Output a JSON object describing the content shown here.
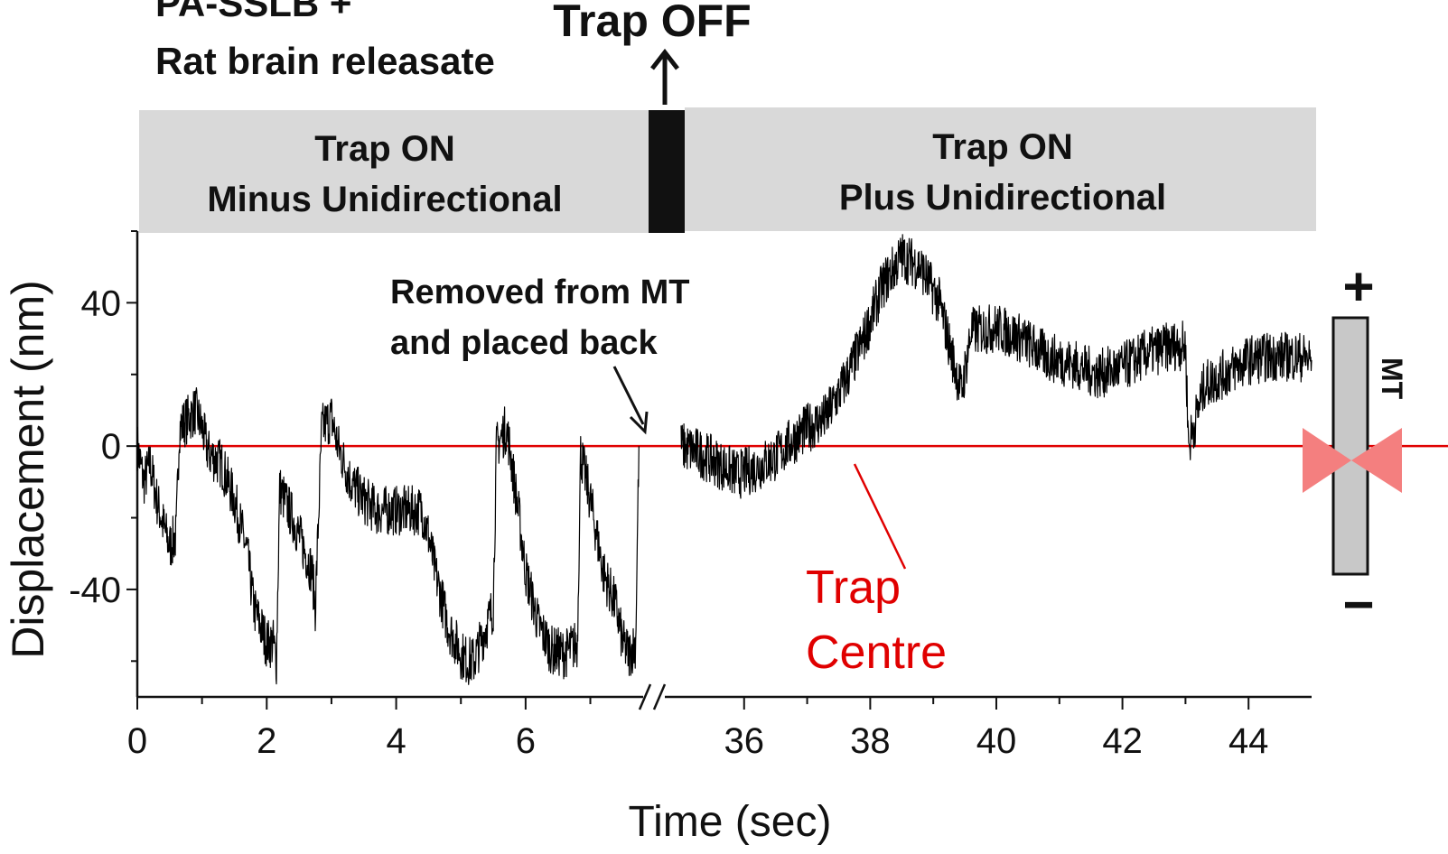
{
  "header": {
    "condition_line1": "PA-SSLB +",
    "condition_line2": "Rat brain releasate",
    "trap_off_label": "Trap OFF"
  },
  "phases": {
    "left_line1": "Trap ON",
    "left_line2": "Minus Unidirectional",
    "right_line1": "Trap ON",
    "right_line2": "Plus Unidirectional"
  },
  "annotations": {
    "removed_line1": "Removed from MT",
    "removed_line2": "and placed back",
    "trap_centre_line1": "Trap",
    "trap_centre_line2": "Centre"
  },
  "mt_schematic": {
    "plus_label": "+",
    "minus_label": "−",
    "mt_label": "MT"
  },
  "colors": {
    "trace": "#000000",
    "trap_centre_line": "#e00000",
    "trap_icon": "#f47f7f",
    "phase_box": "#d9d9d9",
    "trap_off_bar": "#111111",
    "mt_rod": "#c8c8c8"
  },
  "chart_data": {
    "type": "line",
    "xlabel": "Time (sec)",
    "ylabel": "Displacement (nm)",
    "x_segments": [
      {
        "xlim": [
          0,
          7.9
        ],
        "ticks": [
          0,
          2,
          4,
          6
        ],
        "tick_labels": [
          "0",
          "2",
          "4",
          "6"
        ]
      },
      {
        "xlim": [
          34.8,
          45
        ],
        "ticks": [
          36,
          38,
          40,
          42,
          44
        ],
        "tick_labels": [
          "36",
          "38",
          "40",
          "42",
          "44"
        ]
      }
    ],
    "ylim": [
      -70,
      60
    ],
    "yticks": [
      -40,
      0,
      40
    ],
    "ytick_labels": [
      "-40",
      "0",
      "40"
    ],
    "axis_break": "between 7.9 s and 34.8 s",
    "trap_centre_y": 0,
    "grid": false,
    "series": [
      {
        "segment": 0,
        "points": [
          [
            0,
            0
          ],
          [
            0.1,
            -10
          ],
          [
            0.2,
            -5
          ],
          [
            0.3,
            -15
          ],
          [
            0.4,
            -22
          ],
          [
            0.5,
            -28
          ],
          [
            0.6,
            -25
          ],
          [
            0.65,
            5
          ],
          [
            0.8,
            8
          ],
          [
            0.9,
            10
          ],
          [
            1.0,
            5
          ],
          [
            1.1,
            -2
          ],
          [
            1.3,
            -5
          ],
          [
            1.5,
            -15
          ],
          [
            1.7,
            -30
          ],
          [
            1.8,
            -45
          ],
          [
            1.9,
            -50
          ],
          [
            2.0,
            -55
          ],
          [
            2.1,
            -55
          ],
          [
            2.15,
            -60
          ],
          [
            2.2,
            -12
          ],
          [
            2.4,
            -20
          ],
          [
            2.5,
            -25
          ],
          [
            2.7,
            -35
          ],
          [
            2.75,
            -45
          ],
          [
            2.85,
            5
          ],
          [
            3.0,
            8
          ],
          [
            3.1,
            0
          ],
          [
            3.3,
            -10
          ],
          [
            3.5,
            -15
          ],
          [
            3.7,
            -18
          ],
          [
            4.0,
            -18
          ],
          [
            4.4,
            -18
          ],
          [
            4.5,
            -25
          ],
          [
            4.6,
            -35
          ],
          [
            4.8,
            -50
          ],
          [
            5.0,
            -58
          ],
          [
            5.1,
            -60
          ],
          [
            5.2,
            -60
          ],
          [
            5.3,
            -55
          ],
          [
            5.5,
            -45
          ],
          [
            5.55,
            0
          ],
          [
            5.7,
            5
          ],
          [
            5.75,
            0
          ],
          [
            5.9,
            -20
          ],
          [
            6.0,
            -35
          ],
          [
            6.2,
            -50
          ],
          [
            6.4,
            -57
          ],
          [
            6.6,
            -58
          ],
          [
            6.8,
            -55
          ],
          [
            6.85,
            -2
          ],
          [
            7.0,
            -15
          ],
          [
            7.2,
            -35
          ],
          [
            7.4,
            -45
          ],
          [
            7.5,
            -55
          ],
          [
            7.6,
            -58
          ],
          [
            7.7,
            -55
          ],
          [
            7.75,
            0
          ]
        ]
      },
      {
        "segment": 1,
        "points": [
          [
            35.0,
            0
          ],
          [
            35.3,
            -2
          ],
          [
            35.6,
            -5
          ],
          [
            35.9,
            -8
          ],
          [
            36.2,
            -6
          ],
          [
            36.5,
            -3
          ],
          [
            36.8,
            2
          ],
          [
            37.0,
            5
          ],
          [
            37.3,
            8
          ],
          [
            37.6,
            18
          ],
          [
            37.9,
            30
          ],
          [
            38.2,
            45
          ],
          [
            38.5,
            53
          ],
          [
            38.8,
            50
          ],
          [
            39.1,
            40
          ],
          [
            39.3,
            25
          ],
          [
            39.45,
            15
          ],
          [
            39.6,
            32
          ],
          [
            40.0,
            33
          ],
          [
            40.4,
            30
          ],
          [
            40.8,
            25
          ],
          [
            41.2,
            23
          ],
          [
            41.6,
            20
          ],
          [
            42.0,
            22
          ],
          [
            42.4,
            26
          ],
          [
            42.8,
            28
          ],
          [
            43.0,
            28
          ],
          [
            43.05,
            0
          ],
          [
            43.3,
            17
          ],
          [
            43.6,
            20
          ],
          [
            44.0,
            24
          ],
          [
            44.4,
            25
          ],
          [
            44.8,
            25
          ],
          [
            45.0,
            24
          ]
        ]
      }
    ]
  }
}
